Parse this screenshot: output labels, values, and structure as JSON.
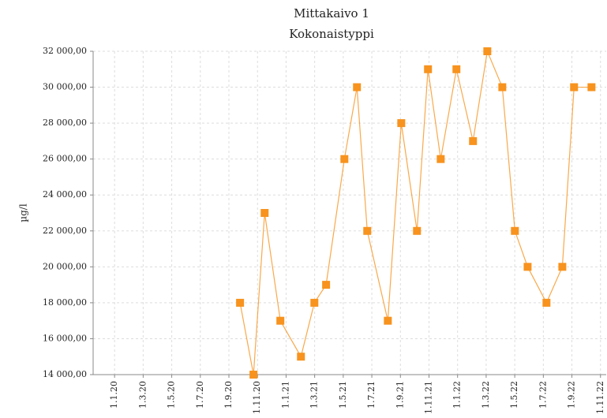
{
  "chart_data": {
    "type": "line",
    "title": "Mittakaivo 1",
    "subtitle": "Kokonaistyppi",
    "y_label": "µg/l",
    "grid": true,
    "xlim": [
      -1.5,
      34.4
    ],
    "xticks": [
      {
        "value": 0,
        "label": "1.1.20"
      },
      {
        "value": 2,
        "label": "1.3.20"
      },
      {
        "value": 4,
        "label": "1.5.20"
      },
      {
        "value": 6,
        "label": "1.7.20"
      },
      {
        "value": 8,
        "label": "1.9.20"
      },
      {
        "value": 10,
        "label": "1.11.20"
      },
      {
        "value": 12,
        "label": "1.1.21"
      },
      {
        "value": 14,
        "label": "1.3.21"
      },
      {
        "value": 16,
        "label": "1.5.21"
      },
      {
        "value": 18,
        "label": "1.7.21"
      },
      {
        "value": 20,
        "label": "1.9.21"
      },
      {
        "value": 22,
        "label": "1.11.21"
      },
      {
        "value": 24,
        "label": "1.1.22"
      },
      {
        "value": 26,
        "label": "1.3.22"
      },
      {
        "value": 28,
        "label": "1.5.22"
      },
      {
        "value": 30,
        "label": "1.7.22"
      },
      {
        "value": 32,
        "label": "1.9.22"
      },
      {
        "value": 34,
        "label": "1.11.22"
      }
    ],
    "ylim": [
      14000,
      32000
    ],
    "yticks": [
      {
        "value": 14000,
        "label": "14 000,00"
      },
      {
        "value": 16000,
        "label": "16 000,00"
      },
      {
        "value": 18000,
        "label": "18 000,00"
      },
      {
        "value": 20000,
        "label": "20 000,00"
      },
      {
        "value": 22000,
        "label": "22 000,00"
      },
      {
        "value": 24000,
        "label": "24 000,00"
      },
      {
        "value": 26000,
        "label": "26 000,00"
      },
      {
        "value": 28000,
        "label": "28 000,00"
      },
      {
        "value": 30000,
        "label": "30 000,00"
      },
      {
        "value": 32000,
        "label": "32 000,00"
      }
    ],
    "series": [
      {
        "color": "#f7931e",
        "x": [
          8.78,
          9.72,
          10.5,
          11.6,
          13.04,
          13.98,
          14.8,
          16.08,
          16.96,
          17.68,
          19.12,
          20.06,
          21.16,
          21.93,
          22.82,
          23.92,
          25.08,
          26.08,
          27.13,
          28.01,
          28.9,
          30.22,
          31.33,
          32.15,
          33.37
        ],
        "values": [
          18000,
          14000,
          23000,
          17000,
          15000,
          18000,
          19000,
          26000,
          30000,
          22000,
          17000,
          28000,
          22000,
          31000,
          26000,
          31000,
          27000,
          32000,
          30000,
          22000,
          20000,
          18000,
          20000,
          30000,
          30000
        ]
      }
    ]
  }
}
